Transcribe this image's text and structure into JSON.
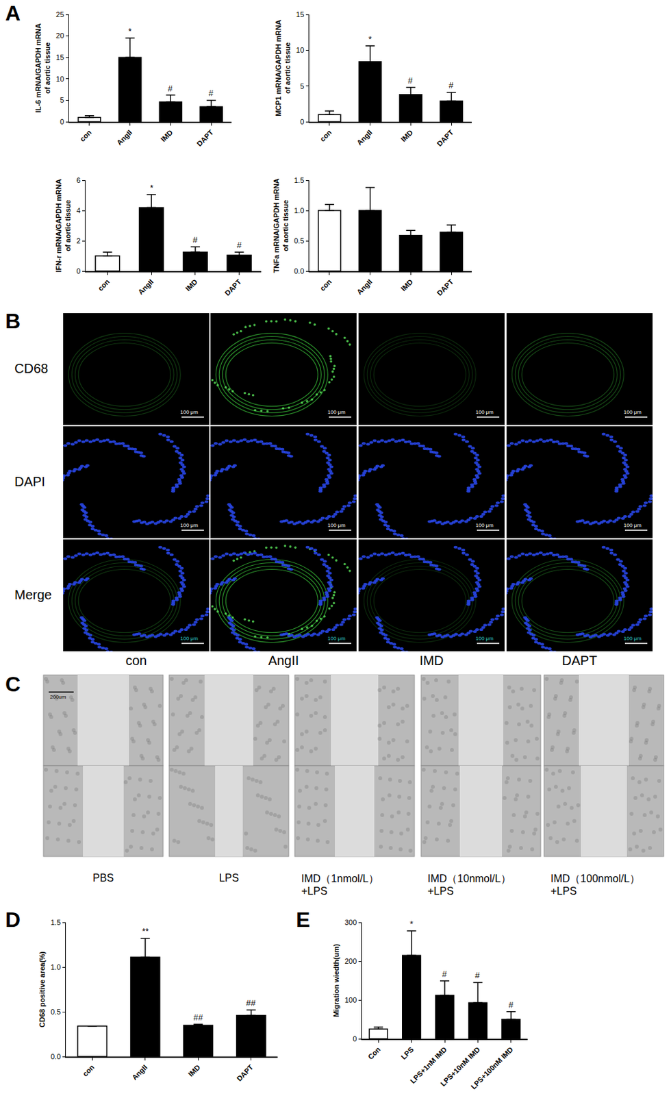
{
  "panel_labels": [
    "A",
    "B",
    "C",
    "D",
    "E"
  ],
  "chart_data": [
    {
      "type": "bar",
      "categories": [
        "con",
        "AngII",
        "IMD",
        "DAPT"
      ],
      "values": [
        1.0,
        15.0,
        4.6,
        3.5
      ],
      "errors": [
        0.4,
        4.5,
        1.6,
        1.5
      ],
      "colors": [
        "#ffffff",
        "#000000",
        "#000000",
        "#000000"
      ],
      "significance": [
        null,
        "*",
        "#",
        "#"
      ],
      "ylabel": "IL-6 mRNA/GAPDH mRNA\nof aortic tissue",
      "ylim": [
        0,
        25
      ],
      "yticks": [
        0,
        5,
        10,
        15,
        20,
        25
      ]
    },
    {
      "type": "bar",
      "categories": [
        "con",
        "AngII",
        "IMD",
        "DAPT"
      ],
      "values": [
        1.0,
        8.4,
        3.8,
        2.9
      ],
      "errors": [
        0.5,
        2.2,
        1.0,
        1.2
      ],
      "colors": [
        "#ffffff",
        "#000000",
        "#000000",
        "#000000"
      ],
      "significance": [
        null,
        "*",
        "#",
        "#"
      ],
      "ylabel": "MCP1 mRNA/GAPDH mRNA\nof aortic tissue",
      "ylim": [
        0,
        15
      ],
      "yticks": [
        0,
        5,
        10,
        15
      ]
    },
    {
      "type": "bar",
      "categories": [
        "con",
        "AngII",
        "IMD",
        "DAPT"
      ],
      "values": [
        1.0,
        4.2,
        1.25,
        1.05
      ],
      "errors": [
        0.25,
        0.85,
        0.35,
        0.2
      ],
      "colors": [
        "#ffffff",
        "#000000",
        "#000000",
        "#000000"
      ],
      "significance": [
        null,
        "*",
        "#",
        "#"
      ],
      "ylabel": "IFN-r mRNA/GAPDH mRNA\nof aortic tissue",
      "ylim": [
        0,
        6
      ],
      "yticks": [
        0,
        2,
        4,
        6
      ]
    },
    {
      "type": "bar",
      "categories": [
        "con",
        "AngII",
        "IMD",
        "DAPT"
      ],
      "values": [
        1.0,
        1.0,
        0.59,
        0.64
      ],
      "errors": [
        0.1,
        0.38,
        0.08,
        0.12
      ],
      "colors": [
        "#ffffff",
        "#000000",
        "#000000",
        "#000000"
      ],
      "significance": [
        null,
        null,
        null,
        null
      ],
      "ylabel": "TNFa mRNA/GAPDH mRNA\nof aortic tissue",
      "ylim": [
        0,
        1.5
      ],
      "yticks": [
        {
          "value": 0,
          "label": "0.0"
        },
        {
          "value": 0.5,
          "label": "0.5"
        },
        {
          "value": 1,
          "label": "1.0"
        },
        {
          "value": 1.5,
          "label": "1.5"
        }
      ]
    },
    {
      "type": "bar",
      "categories": [
        "con",
        "AngII",
        "IMD",
        "DAPT"
      ],
      "values": [
        0.34,
        1.11,
        0.35,
        0.46
      ],
      "errors": [
        0,
        0.21,
        0.01,
        0.06
      ],
      "colors": [
        "#ffffff",
        "#000000",
        "#000000",
        "#000000"
      ],
      "significance": [
        null,
        "**",
        "##",
        "##"
      ],
      "ylabel": "CD68 positive area(%)",
      "ylim": [
        0,
        1.5
      ],
      "yticks": [
        {
          "value": 0,
          "label": "0.0"
        },
        {
          "value": 0.5,
          "label": "0.5"
        },
        {
          "value": 1,
          "label": "1.0"
        },
        {
          "value": 1.5,
          "label": "1.5"
        }
      ]
    },
    {
      "type": "bar",
      "categories": [
        "Con",
        "LPS",
        "LPS+1nM IMD",
        "LPS+10nM IMD",
        "LPS+100nM IMD"
      ],
      "values": [
        25,
        215,
        112,
        93,
        50
      ],
      "errors": [
        5,
        63,
        37,
        52,
        20
      ],
      "colors": [
        "#ffffff",
        "#000000",
        "#000000",
        "#000000",
        "#000000"
      ],
      "significance": [
        null,
        "*",
        "#",
        "#",
        "#"
      ],
      "ylabel": "Migration wiedth(um)",
      "ylim": [
        0,
        300
      ],
      "yticks": [
        0,
        100,
        200,
        300
      ]
    }
  ],
  "immunofluorescence": {
    "rows": [
      "CD68",
      "DAPI",
      "Merge"
    ],
    "columns": [
      "con",
      "AngII",
      "IMD",
      "DAPT"
    ],
    "scale_bar": "100 μm"
  },
  "scratch_assay": {
    "columns": [
      [
        "PBS"
      ],
      [
        "LPS"
      ],
      [
        "IMD（1nmol/L）",
        "+LPS"
      ],
      [
        "IMD（10nmol/L）",
        "+LPS"
      ],
      [
        "IMD（100nmol/L）",
        "+LPS"
      ]
    ],
    "scale_bar": "200um"
  }
}
